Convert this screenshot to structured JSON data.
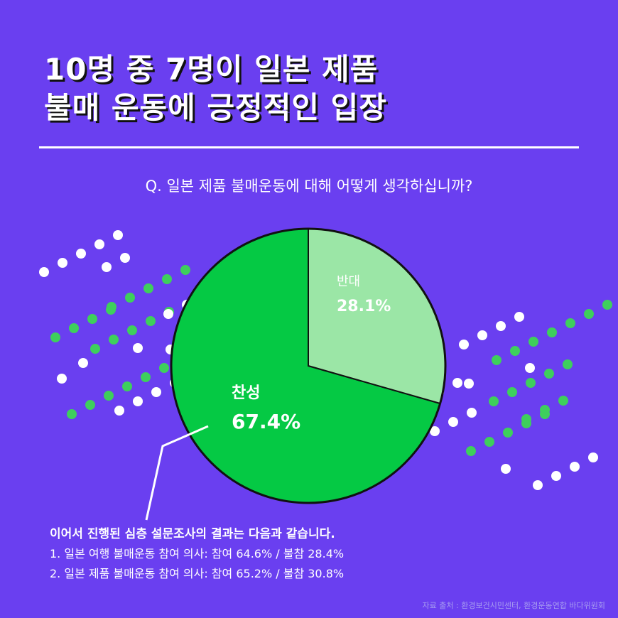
{
  "title": {
    "line1": "10명 중 7명이 일본 제품",
    "line2": "불매 운동에 긍정적인 입장"
  },
  "question": "Q. 일본 제품 불매운동에 대해 어떻게 생각하십니까?",
  "chart_data": {
    "type": "pie",
    "slices": [
      {
        "label": "찬성",
        "value": 67.4,
        "display": "67.4%",
        "color": "#05c944"
      },
      {
        "label": "반대",
        "value": 28.1,
        "display": "28.1%",
        "color": "#9be6a6"
      }
    ]
  },
  "notes": {
    "heading": "이어서 진행된 심층 설문조사의 결과는 다음과 같습니다.",
    "items": [
      "1. 일본 여행 불매운동 참여 의사: 참여 64.6% / 불참 28.4%",
      "2. 일본 제품 불매운동 참여 의사: 참여 65.2% / 불참 30.8%"
    ]
  },
  "source": "자료 출처 : 환경보건시민센터, 환경운동연합 바다위원회",
  "colors": {
    "background": "#6a3ff0",
    "dot_white": "#ffffff",
    "dot_green": "#3ecf5c",
    "pie_border": "#111111"
  }
}
